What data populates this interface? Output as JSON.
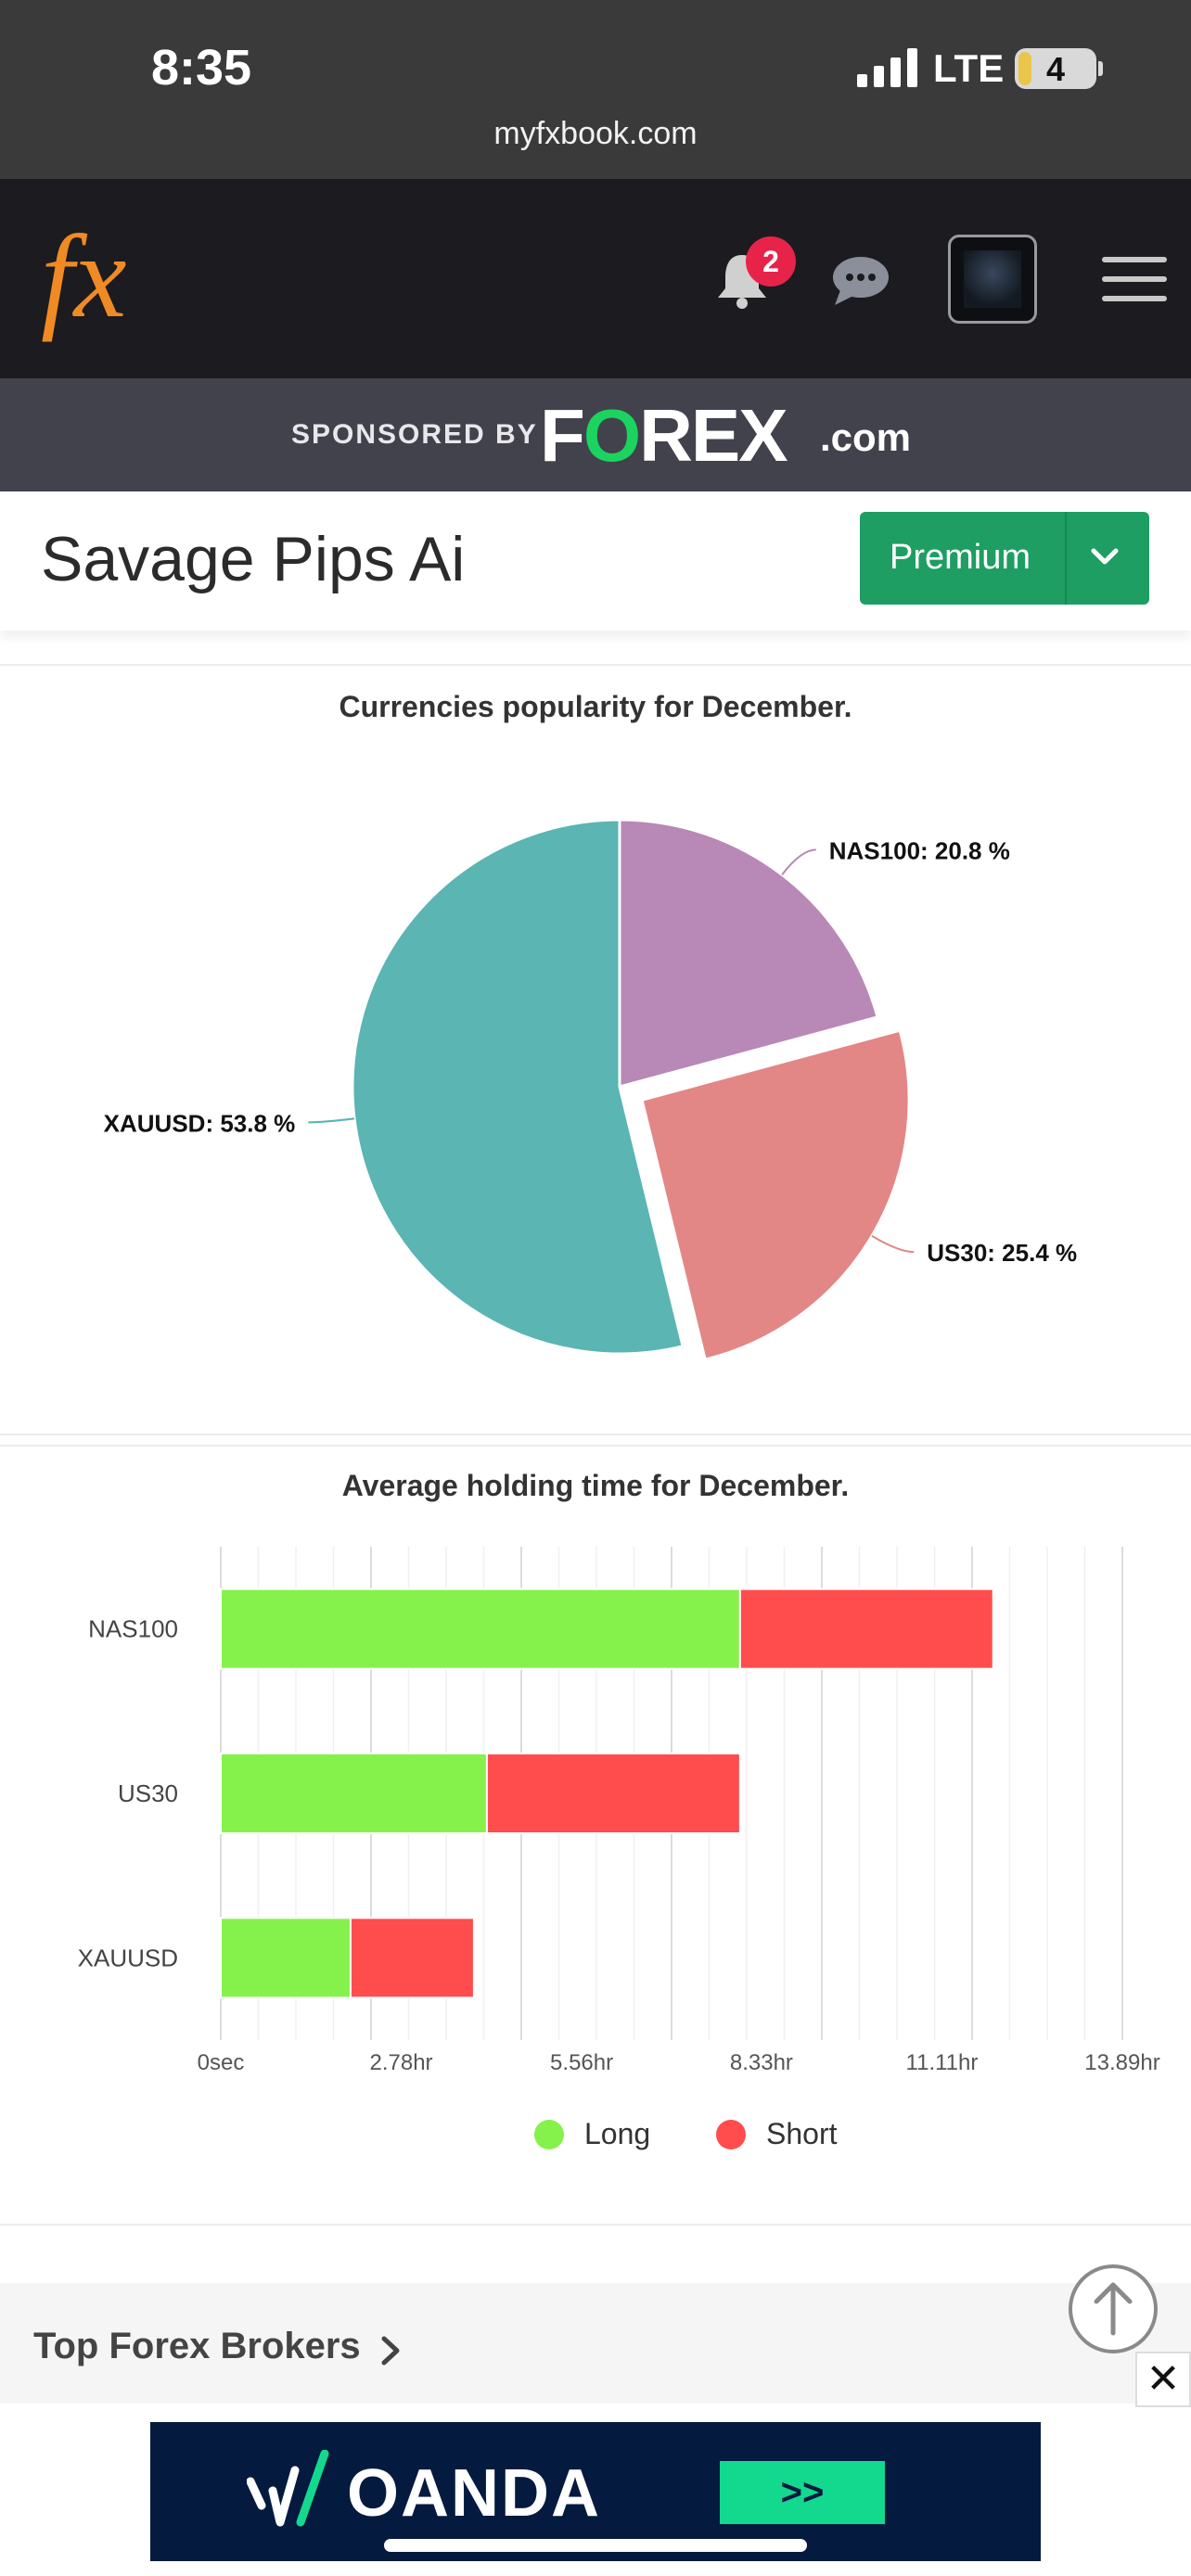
{
  "status_bar": {
    "time": "8:35",
    "network": "LTE",
    "battery": "4",
    "url": "myfxbook.com"
  },
  "header": {
    "logo_text": "fx",
    "notification_count": "2"
  },
  "sponsor": {
    "label": "SPONSORED BY",
    "brand_a": "F",
    "brand_o": "O",
    "brand_b": "REX",
    "brand_suffix": ".com"
  },
  "title_bar": {
    "title": "Savage Pips Ai",
    "premium_label": "Premium"
  },
  "colors": {
    "long": "#84f24a",
    "short": "#ff4c4c",
    "nas100": "#b888b6",
    "us30": "#e38686",
    "xauusd": "#5ab5b3"
  },
  "chart_data": [
    {
      "type": "pie",
      "title": "Currencies popularity for December.",
      "slices": [
        {
          "label": "NAS100",
          "value": 20.8,
          "display": "NAS100: 20.8 %",
          "color": "#b888b6",
          "exploded": false
        },
        {
          "label": "US30",
          "value": 25.4,
          "display": "US30: 25.4 %",
          "color": "#e38686",
          "exploded": true
        },
        {
          "label": "XAUUSD",
          "value": 53.8,
          "display": "XAUUSD: 53.8 %",
          "color": "#5ab5b3",
          "exploded": false
        }
      ]
    },
    {
      "type": "bar",
      "orientation": "horizontal",
      "stacked": true,
      "title": "Average holding time for December.",
      "categories": [
        "NAS100",
        "US30",
        "XAUUSD"
      ],
      "series": [
        {
          "name": "Long",
          "color": "#84f24a",
          "values": [
            8.0,
            4.1,
            2.0
          ]
        },
        {
          "name": "Short",
          "color": "#ff4c4c",
          "values": [
            3.9,
            3.9,
            1.9
          ]
        }
      ],
      "unit": "hr",
      "xlim": [
        0,
        13.89
      ],
      "x_ticks": [
        0,
        2.78,
        5.56,
        8.33,
        11.11,
        13.89
      ],
      "x_tick_labels": [
        "0sec",
        "2.78hr",
        "5.56hr",
        "8.33hr",
        "11.11hr",
        "13.89hr"
      ],
      "legend": [
        "Long",
        "Short"
      ],
      "legend_position": "bottom"
    }
  ],
  "footer": {
    "brokers_label": "Top Forex Brokers",
    "close_label": "✕"
  },
  "ad": {
    "brand": "OANDA",
    "cta": ">>"
  }
}
